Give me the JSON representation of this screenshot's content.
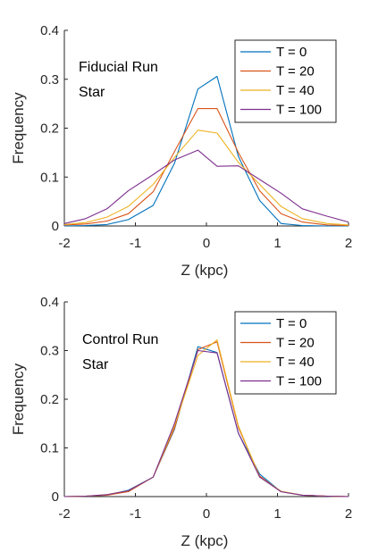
{
  "chart_data": [
    {
      "type": "line",
      "title": "",
      "annotation": [
        "Fiducial Run",
        "Star"
      ],
      "xlabel": "Z (kpc)",
      "ylabel": "Frequency",
      "xlim": [
        -2,
        2
      ],
      "ylim": [
        0,
        0.4
      ],
      "xticks": [
        "-2",
        "-1",
        "0",
        "1",
        "2"
      ],
      "yticks": [
        "0",
        "0.1",
        "0.2",
        "0.3",
        "0.4"
      ],
      "legend_position": "top-right",
      "x": [
        -2.0,
        -1.7,
        -1.4,
        -1.1,
        -0.75,
        -0.45,
        -0.12,
        0.15,
        0.45,
        0.75,
        1.05,
        1.35,
        1.7,
        2.0
      ],
      "series": [
        {
          "name": "T = 0",
          "color": "#0072BD",
          "values": [
            0.0,
            0.001,
            0.003,
            0.013,
            0.042,
            0.128,
            0.28,
            0.306,
            0.142,
            0.052,
            0.005,
            0.001,
            0.0,
            0.0
          ]
        },
        {
          "name": "T = 20",
          "color": "#D95319",
          "values": [
            0.002,
            0.004,
            0.01,
            0.025,
            0.07,
            0.152,
            0.24,
            0.24,
            0.15,
            0.072,
            0.025,
            0.008,
            0.002,
            0.001
          ]
        },
        {
          "name": "T = 40",
          "color": "#EDB120",
          "values": [
            0.003,
            0.007,
            0.018,
            0.04,
            0.085,
            0.14,
            0.196,
            0.19,
            0.13,
            0.085,
            0.04,
            0.015,
            0.005,
            0.002
          ]
        },
        {
          "name": "T = 100",
          "color": "#7E2F8E",
          "values": [
            0.005,
            0.015,
            0.035,
            0.072,
            0.105,
            0.135,
            0.155,
            0.122,
            0.123,
            0.095,
            0.067,
            0.035,
            0.02,
            0.008
          ]
        }
      ]
    },
    {
      "type": "line",
      "title": "",
      "annotation": [
        "Control Run",
        "Star"
      ],
      "xlabel": "Z (kpc)",
      "ylabel": "Frequency",
      "xlim": [
        -2,
        2
      ],
      "ylim": [
        0,
        0.4
      ],
      "xticks": [
        "-2",
        "-1",
        "0",
        "1",
        "2"
      ],
      "yticks": [
        "0",
        "0.1",
        "0.2",
        "0.3",
        "0.4"
      ],
      "legend_position": "top-right",
      "x": [
        -2.0,
        -1.7,
        -1.4,
        -1.1,
        -0.75,
        -0.45,
        -0.12,
        0.15,
        0.45,
        0.75,
        1.05,
        1.35,
        1.7,
        2.0
      ],
      "series": [
        {
          "name": "T = 0",
          "color": "#0072BD",
          "values": [
            0.0,
            0.001,
            0.003,
            0.013,
            0.04,
            0.138,
            0.308,
            0.296,
            0.13,
            0.046,
            0.01,
            0.003,
            0.001,
            0.0
          ]
        },
        {
          "name": "T = 20",
          "color": "#D95319",
          "values": [
            0.0,
            0.001,
            0.003,
            0.01,
            0.04,
            0.14,
            0.302,
            0.318,
            0.142,
            0.042,
            0.01,
            0.003,
            0.001,
            0.0
          ]
        },
        {
          "name": "T = 40",
          "color": "#EDB120",
          "values": [
            0.0,
            0.001,
            0.004,
            0.012,
            0.04,
            0.145,
            0.29,
            0.322,
            0.145,
            0.04,
            0.011,
            0.003,
            0.001,
            0.0
          ]
        },
        {
          "name": "T = 100",
          "color": "#7E2F8E",
          "values": [
            0.0,
            0.001,
            0.004,
            0.012,
            0.04,
            0.15,
            0.3,
            0.295,
            0.13,
            0.04,
            0.01,
            0.003,
            0.001,
            0.0
          ]
        }
      ]
    }
  ]
}
